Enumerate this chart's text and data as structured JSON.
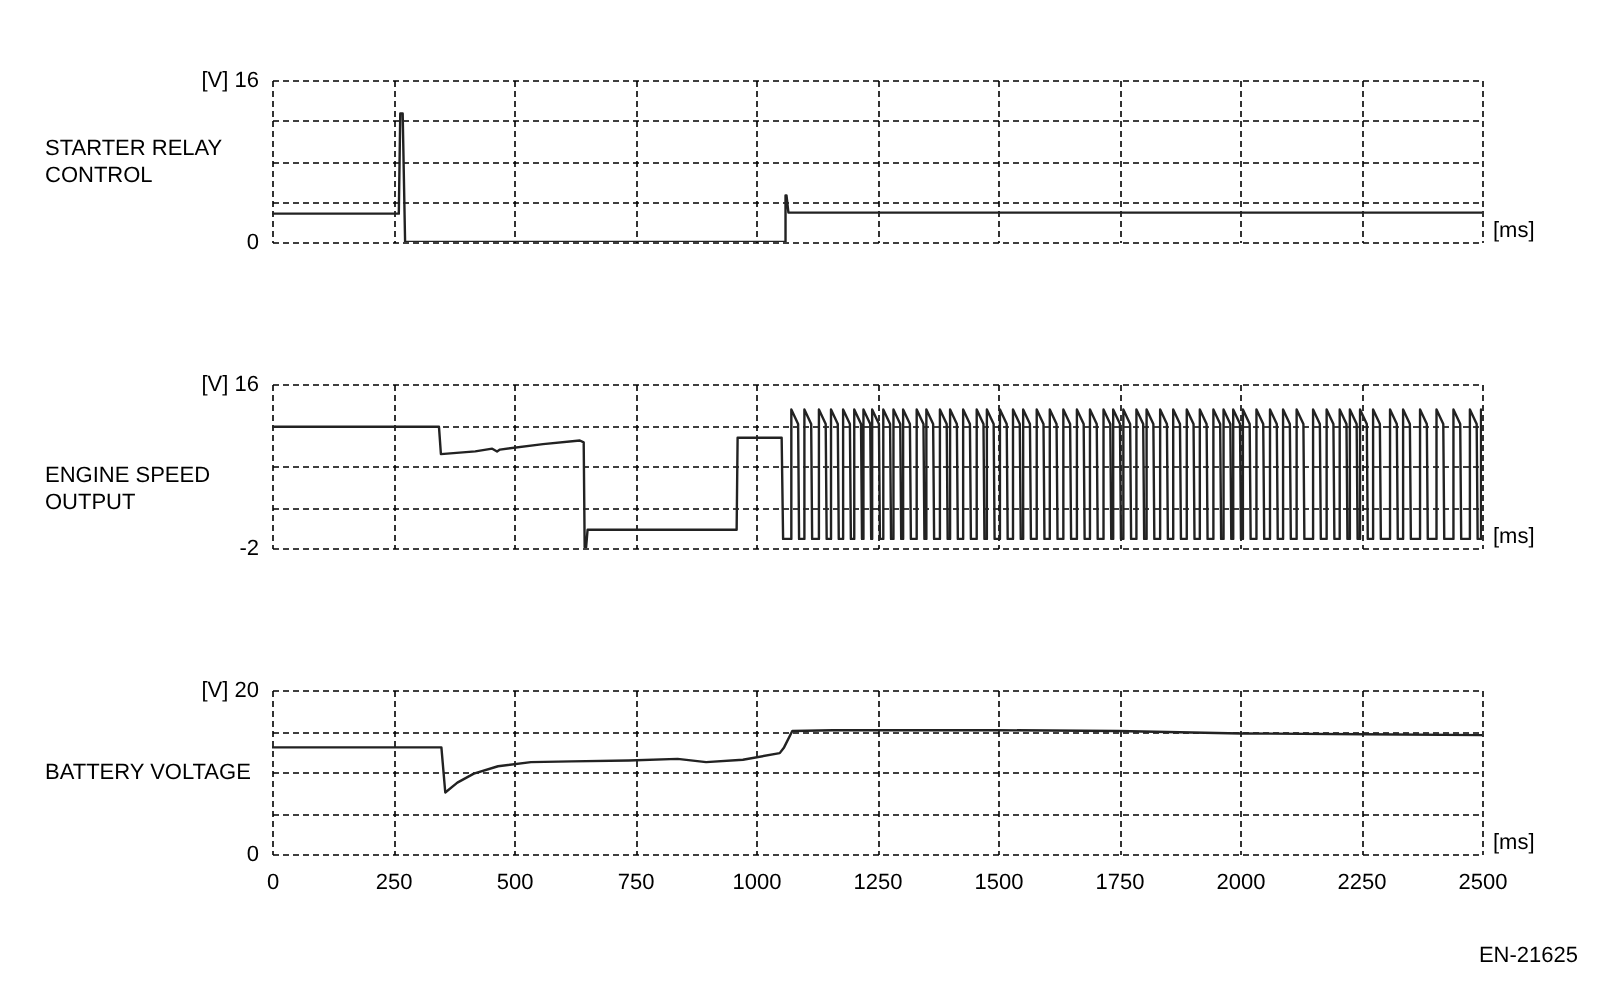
{
  "chart_data": [
    {
      "type": "line",
      "ylabel": "STARTER RELAY\nCONTROL",
      "xlabel": "[ms]",
      "xlim": [
        0,
        2500
      ],
      "xticks": [
        0,
        250,
        500,
        750,
        1000,
        1250,
        1500,
        1750,
        2000,
        2250,
        2500
      ],
      "ylim": [
        0,
        16
      ],
      "yticks": [
        {
          "value": 0,
          "label": "0"
        },
        {
          "value": 4,
          "label": null
        },
        {
          "value": 8,
          "label": null
        },
        {
          "value": 12,
          "label": null
        },
        {
          "value": 16,
          "label": "[V] 16"
        }
      ],
      "grid": true,
      "tick_labels": "y",
      "series": [
        {
          "color": "#222222",
          "x": [
            0,
            262,
            265,
            270,
            275,
            1061,
            1061,
            1063,
            1067,
            2500
          ],
          "values": [
            2.8,
            2.8,
            12.7,
            12.7,
            0,
            0,
            4.6,
            4.6,
            2.9,
            2.9
          ]
        }
      ]
    },
    {
      "type": "line",
      "ylabel": "ENGINE SPEED\nOUTPUT",
      "xlabel": "[ms]",
      "xlim": [
        0,
        2500
      ],
      "xticks": [
        0,
        250,
        500,
        750,
        1000,
        1250,
        1500,
        1750,
        2000,
        2250,
        2500
      ],
      "ylim": [
        -2,
        16
      ],
      "yticks": [
        -2,
        {
          "value": 2.5,
          "label": null
        },
        {
          "value": 7,
          "label": null
        },
        {
          "value": 11.5,
          "label": null
        },
        {
          "value": 16,
          "label": "[V] 16"
        }
      ],
      "grid": true,
      "tick_labels": "y",
      "series": [
        {
          "color": "#222222",
          "x": [
            0,
            345,
            349,
            420,
            455,
            465,
            471,
            560,
            636,
            644,
            646,
            649,
            652,
            960,
            962,
            1053,
            1056,
            1073,
            1073,
            1087,
            1089,
            1100,
            1100,
            1114,
            1116,
            1130,
            1130,
            1144,
            1146,
            1155,
            1155,
            1169,
            1171,
            1180,
            1180,
            1194,
            1196,
            1203,
            1203,
            1217,
            1219,
            1222,
            1222,
            1236,
            1238,
            1240,
            1240,
            1254,
            1256,
            1263,
            1263,
            1277,
            1279,
            1284,
            1284,
            1298,
            1300,
            1304,
            1304,
            1318,
            1320,
            1332,
            1332,
            1346,
            1348,
            1352,
            1352,
            1366,
            1368,
            1380,
            1380,
            1394,
            1396,
            1401,
            1401,
            1415,
            1417,
            1428,
            1428,
            1442,
            1444,
            1456,
            1456,
            1470,
            1472,
            1477,
            1477,
            1491,
            1493,
            1504,
            1504,
            1518,
            1520,
            1531,
            1531,
            1545,
            1547,
            1552,
            1552,
            1566,
            1568,
            1580,
            1580,
            1594,
            1596,
            1607,
            1607,
            1621,
            1623,
            1635,
            1635,
            1649,
            1651,
            1663,
            1663,
            1677,
            1679,
            1690,
            1690,
            1704,
            1706,
            1718,
            1718,
            1732,
            1734,
            1738,
            1738,
            1752,
            1754,
            1759,
            1759,
            1773,
            1775,
            1786,
            1786,
            1800,
            1802,
            1807,
            1807,
            1821,
            1823,
            1835,
            1835,
            1849,
            1851,
            1862,
            1862,
            1876,
            1878,
            1890,
            1890,
            1904,
            1906,
            1917,
            1917,
            1931,
            1933,
            1945,
            1945,
            1959,
            1961,
            1966,
            1966,
            1980,
            1982,
            1986,
            1986,
            2000,
            2002,
            2006,
            2006,
            2020,
            2022,
            2034,
            2034,
            2048,
            2050,
            2062,
            2062,
            2076,
            2078,
            2089,
            2089,
            2103,
            2105,
            2117,
            2117,
            2131,
            2133,
            2151,
            2151,
            2165,
            2167,
            2179,
            2179,
            2193,
            2195,
            2206,
            2206,
            2220,
            2222,
            2227,
            2227,
            2241,
            2243,
            2248,
            2248,
            2262,
            2264,
            2275,
            2275,
            2289,
            2291,
            2310,
            2310,
            2324,
            2326,
            2337,
            2337,
            2351,
            2353,
            2372,
            2372,
            2386,
            2388,
            2406,
            2406,
            2420,
            2422,
            2441,
            2441,
            2455,
            2457,
            2475,
            2475,
            2489,
            2491,
            2498,
            2498,
            2500
          ],
          "values": [
            11.3,
            11.3,
            8.3,
            8.6,
            8.9,
            8.6,
            8.8,
            9.4,
            9.8,
            9.6,
            -1.9,
            -1.9,
            0,
            0,
            10.1,
            10.1,
            -1,
            -1,
            13.2,
            11.6,
            -1,
            -1,
            13.2,
            11.6,
            -1,
            -1,
            13.2,
            11.6,
            -1,
            -1,
            13.2,
            11.6,
            -1,
            -1,
            13.2,
            11.6,
            -1,
            -1,
            13.2,
            11.6,
            -1,
            -1,
            13.2,
            11.6,
            -1,
            -1,
            13.2,
            11.6,
            -1,
            -1,
            13.2,
            11.6,
            -1,
            -1,
            13.2,
            11.6,
            -1,
            -1,
            13.2,
            11.6,
            -1,
            -1,
            13.2,
            11.6,
            -1,
            -1,
            13.2,
            11.6,
            -1,
            -1,
            13.2,
            11.6,
            -1,
            -1,
            13.2,
            11.6,
            -1,
            -1,
            13.2,
            11.6,
            -1,
            -1,
            13.2,
            11.6,
            -1,
            -1,
            13.2,
            11.6,
            -1,
            -1,
            13.2,
            11.6,
            -1,
            -1,
            13.2,
            11.6,
            -1,
            -1,
            13.2,
            11.6,
            -1,
            -1,
            13.2,
            11.6,
            -1,
            -1,
            13.2,
            11.6,
            -1,
            -1,
            13.2,
            11.6,
            -1,
            -1,
            13.2,
            11.6,
            -1,
            -1,
            13.2,
            11.6,
            -1,
            -1,
            13.2,
            11.6,
            -1,
            -1,
            13.2,
            11.6,
            -1,
            -1,
            13.2,
            11.6,
            -1,
            -1,
            13.2,
            11.6,
            -1,
            -1,
            13.2,
            11.6,
            -1,
            -1,
            13.2,
            11.6,
            -1,
            -1,
            13.2,
            11.6,
            -1,
            -1,
            13.2,
            11.6,
            -1,
            -1,
            13.2,
            11.6,
            -1,
            -1,
            13.2,
            11.6,
            -1,
            -1,
            13.2,
            11.6,
            -1,
            -1,
            13.2,
            11.6,
            -1,
            -1,
            13.2,
            11.6,
            -1,
            -1,
            13.2,
            11.6,
            -1,
            -1,
            13.2,
            11.6,
            -1,
            -1,
            13.2,
            11.6,
            -1,
            -1,
            13.2,
            11.6,
            -1,
            -1,
            13.2,
            11.6,
            -1,
            -1,
            13.2,
            11.6,
            -1,
            -1,
            13.2,
            11.6,
            -1,
            -1,
            13.2,
            11.6,
            -1,
            -1,
            13.2,
            11.6,
            -1,
            -1,
            13.2,
            11.6,
            -1,
            -1,
            13.2,
            11.6,
            -1,
            -1,
            13.2,
            11.6,
            -1,
            -1,
            13.2,
            11.6,
            -1,
            -1,
            13.2,
            11.6,
            -1,
            -1,
            13.2,
            11.6,
            -1,
            -1,
            13.2,
            11.6,
            -1,
            -1,
            13.2,
            12.8
          ]
        }
      ]
    },
    {
      "type": "line",
      "ylabel": "BATTERY VOLTAGE",
      "xlabel": "[ms]",
      "xlim": [
        0,
        2500
      ],
      "xticks": [
        0,
        250,
        500,
        750,
        1000,
        1250,
        1500,
        1750,
        2000,
        2250,
        2500
      ],
      "ylim": [
        0,
        20
      ],
      "yticks": [
        0,
        {
          "value": 5,
          "label": null
        },
        {
          "value": 10,
          "label": null
        },
        {
          "value": 15,
          "label": null
        },
        {
          "value": 20,
          "label": "[V] 20"
        }
      ],
      "grid": true,
      "series": [
        {
          "color": "#222222",
          "x": [
            0,
            350,
            358,
            383,
            417,
            467,
            535,
            619,
            737,
            838,
            897,
            973,
            1049,
            1058,
            1075,
            1159,
            1496,
            1749,
            2002,
            2255,
            2500
          ],
          "values": [
            13.0,
            13.0,
            7.5,
            8.7,
            9.8,
            10.7,
            11.2,
            11.3,
            11.4,
            11.6,
            11.2,
            11.5,
            12.3,
            13.0,
            15.0,
            15.1,
            15.1,
            15.0,
            14.7,
            14.6,
            14.5
          ]
        }
      ],
      "annotations": [
        "EN-21625"
      ]
    }
  ]
}
